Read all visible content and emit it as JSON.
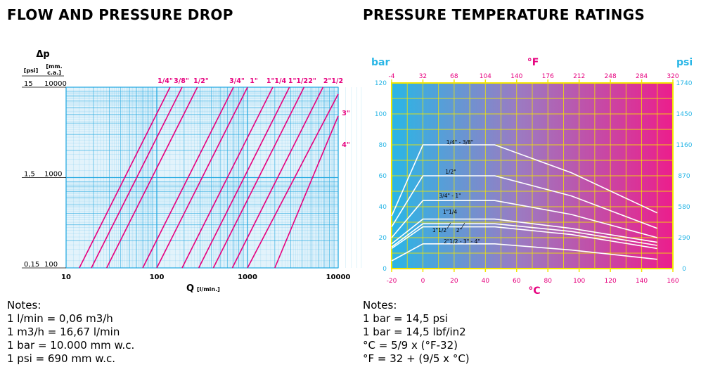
{
  "titles": {
    "left": "FLOW AND PRESSURE DROP",
    "right": "PRESSURE TEMPERATURE RATINGS"
  },
  "notes_left": {
    "heading": "Notes:",
    "lines": [
      "1 l/min = 0,06 m3/h",
      "1 m3/h = 16,67 l/min",
      "1 bar = 10.000 mm w.c.",
      "1 psi = 690 mm w.c."
    ]
  },
  "notes_right": {
    "heading": "Notes:",
    "lines": [
      "1 bar = 14,5 psi",
      "1 bar = 14,5 lbf/in2",
      "°C = 5/9 x (°F-32)",
      "°F = 32 + (9/5 x °C)"
    ]
  },
  "colors": {
    "grid": "#29abe2",
    "grid_fill": "#e3f3fb",
    "curve": "#e6007e",
    "hot": "#ec1e8c",
    "cold": "#29b6e6",
    "frame": "#f2e600",
    "white_curve": "#ffffff"
  },
  "chart_data": [
    {
      "type": "line",
      "title": "FLOW AND PRESSURE DROP",
      "scale": "log-log",
      "xlabel": "Q",
      "xlabel_unit": "[l/min.]",
      "xlim": [
        10,
        10000
      ],
      "x_ticks": [
        "10",
        "100",
        "1000",
        "10000"
      ],
      "ylabel": "Δp",
      "y_units": [
        "[psi]",
        "[mm. c.a.]"
      ],
      "ylim_mm": [
        100,
        10000
      ],
      "y_ticks": [
        {
          "psi": "15",
          "mm": "10000",
          "mm_value": 10000
        },
        {
          "psi": "1,5",
          "mm": "1000",
          "mm_value": 1000
        },
        {
          "psi": "0,15",
          "mm": "100",
          "mm_value": 100
        }
      ],
      "series": [
        {
          "name": "1/4\"",
          "points": [
            [
              14,
              100
            ],
            [
              140,
              10000
            ]
          ]
        },
        {
          "name": "3/8\"",
          "points": [
            [
              19,
              100
            ],
            [
              190,
              10000
            ]
          ]
        },
        {
          "name": "1/2\"",
          "points": [
            [
              28,
              100
            ],
            [
              280,
              10000
            ]
          ]
        },
        {
          "name": "3/4\"",
          "points": [
            [
              70,
              100
            ],
            [
              700,
              10000
            ]
          ]
        },
        {
          "name": "1\"",
          "points": [
            [
              100,
              100
            ],
            [
              1000,
              10000
            ]
          ]
        },
        {
          "name": "1\"1/4",
          "points": [
            [
              190,
              100
            ],
            [
              1900,
              10000
            ]
          ]
        },
        {
          "name": "1\"1/2",
          "points": [
            [
              290,
              100
            ],
            [
              2900,
              10000
            ]
          ]
        },
        {
          "name": "2\"",
          "points": [
            [
              420,
              100
            ],
            [
              4200,
              10000
            ]
          ]
        },
        {
          "name": "2\"1/2",
          "points": [
            [
              680,
              100
            ],
            [
              6800,
              10000
            ]
          ]
        },
        {
          "name": "3\"",
          "points": [
            [
              1000,
              100
            ],
            [
              10000,
              8400
            ]
          ]
        },
        {
          "name": "4\"",
          "points": [
            [
              2000,
              100
            ],
            [
              10000,
              4800
            ]
          ]
        }
      ]
    },
    {
      "type": "line",
      "title": "PRESSURE TEMPERATURE RATINGS",
      "xlabel": "°C",
      "xlabel_top": "°F",
      "ylabel_left": "bar",
      "ylabel_right": "psi",
      "xlim": [
        -20,
        160
      ],
      "ylim": [
        0,
        120
      ],
      "x_ticks": [
        "-20",
        "0",
        "20",
        "40",
        "60",
        "80",
        "100",
        "120",
        "140",
        "160"
      ],
      "x_ticks_f": [
        "-4",
        "32",
        "68",
        "104",
        "140",
        "176",
        "212",
        "248",
        "284",
        "320"
      ],
      "y_ticks": [
        "0",
        "20",
        "40",
        "60",
        "80",
        "100",
        "120"
      ],
      "y_ticks_psi": [
        "0",
        "290",
        "580",
        "870",
        "1160",
        "1450",
        "1740"
      ],
      "series": [
        {
          "name": "1/4\" - 3/8\"",
          "x": [
            -20,
            0,
            46,
            95,
            150
          ],
          "y": [
            34,
            80,
            80,
            62,
            36
          ]
        },
        {
          "name": "1/2\"",
          "x": [
            -20,
            0,
            46,
            95,
            150
          ],
          "y": [
            27,
            60,
            60,
            47,
            26
          ]
        },
        {
          "name": "3/4\" - 1\"",
          "x": [
            -20,
            0,
            46,
            95,
            150
          ],
          "y": [
            20,
            44,
            44,
            35,
            20
          ]
        },
        {
          "name": "1\"1/4",
          "x": [
            -20,
            0,
            46,
            95,
            150
          ],
          "y": [
            16,
            32,
            32,
            26,
            17
          ]
        },
        {
          "name": "1\"1/2",
          "x": [
            -20,
            0,
            46,
            95,
            150
          ],
          "y": [
            14,
            29,
            29,
            24,
            15
          ]
        },
        {
          "name": "2\"",
          "x": [
            -20,
            0,
            46,
            95,
            150
          ],
          "y": [
            13,
            27,
            27,
            22,
            13
          ]
        },
        {
          "name": "2\"1/2 - 3\" - 4\"",
          "x": [
            -20,
            0,
            46,
            95,
            150
          ],
          "y": [
            5,
            16,
            16,
            12,
            6
          ]
        }
      ]
    }
  ]
}
